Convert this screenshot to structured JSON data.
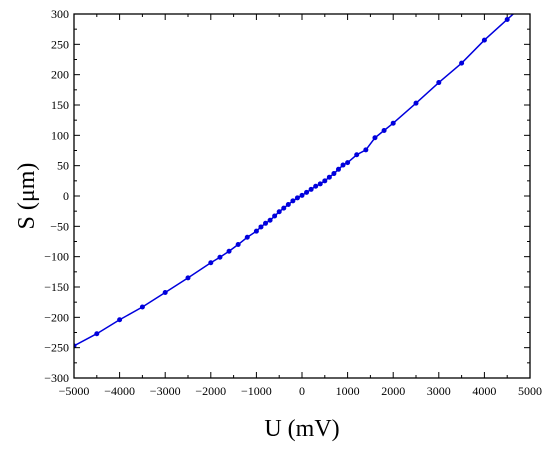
{
  "chart_data": {
    "type": "line",
    "xlabel": "U (mV)",
    "ylabel": "S (μm)",
    "xlim": [
      -5000,
      5000
    ],
    "ylim": [
      -300,
      300
    ],
    "xticks": [
      -5000,
      -4000,
      -3000,
      -2000,
      -1000,
      0,
      1000,
      2000,
      3000,
      4000,
      5000
    ],
    "yticks": [
      -300,
      -250,
      -200,
      -150,
      -100,
      -50,
      0,
      50,
      100,
      150,
      200,
      250,
      300
    ],
    "grid": false,
    "colors": {
      "series": "#0000dd",
      "axis": "#000000"
    },
    "series": [
      {
        "markers": true,
        "x": [
          -5000,
          -4500,
          -4000,
          -3500,
          -3000,
          -2500,
          -2000,
          -1800,
          -1600,
          -1400,
          -1200,
          -1000,
          -900,
          -800,
          -700,
          -600,
          -500,
          -400,
          -300,
          -200,
          -100,
          0,
          100,
          200,
          300,
          400,
          500,
          600,
          700,
          800,
          900,
          1000,
          1200,
          1400,
          1600,
          1800,
          2000,
          2500,
          3000,
          3500,
          4000,
          4500
        ],
        "y": [
          -247,
          -227,
          -204,
          -183,
          -159,
          -135,
          -110,
          -101,
          -91,
          -80,
          -68,
          -58,
          -51,
          -45,
          -40,
          -33,
          -26,
          -20,
          -14,
          -8,
          -3,
          1,
          6,
          11,
          16,
          20,
          25,
          31,
          37,
          44,
          51,
          55,
          68,
          76,
          96,
          108,
          120,
          153,
          187,
          219,
          257,
          291
        ]
      }
    ]
  }
}
